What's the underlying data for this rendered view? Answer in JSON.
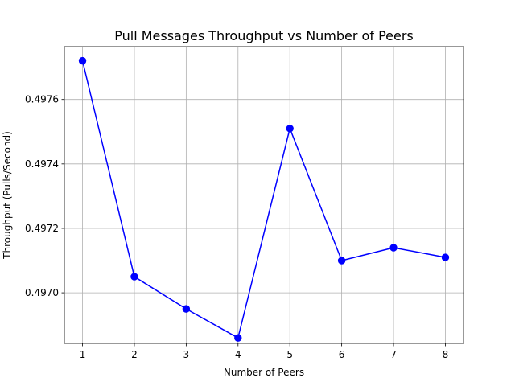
{
  "chart_data": {
    "type": "line",
    "title": "Pull Messages Throughput vs Number of Peers",
    "xlabel": "Number of Peers",
    "ylabel": "Throughput (Pulls/Second)",
    "x": [
      1,
      2,
      3,
      4,
      5,
      6,
      7,
      8
    ],
    "series": [
      {
        "values": [
          0.49772,
          0.49705,
          0.49695,
          0.49686,
          0.49751,
          0.4971,
          0.49714,
          0.49711
        ],
        "color": "#0000ff",
        "marker": "circle"
      }
    ],
    "xlim": [
      0.65,
      8.35
    ],
    "ylim": [
      0.496843,
      0.497764
    ],
    "xticks": [
      1,
      2,
      3,
      4,
      5,
      6,
      7,
      8
    ],
    "xtick_labels": [
      "1",
      "2",
      "3",
      "4",
      "5",
      "6",
      "7",
      "8"
    ],
    "yticks": [
      0.497,
      0.4972,
      0.4974,
      0.4976
    ],
    "ytick_labels": [
      "0.4970",
      "0.4972",
      "0.4974",
      "0.4976"
    ],
    "grid": true,
    "legend": false
  }
}
